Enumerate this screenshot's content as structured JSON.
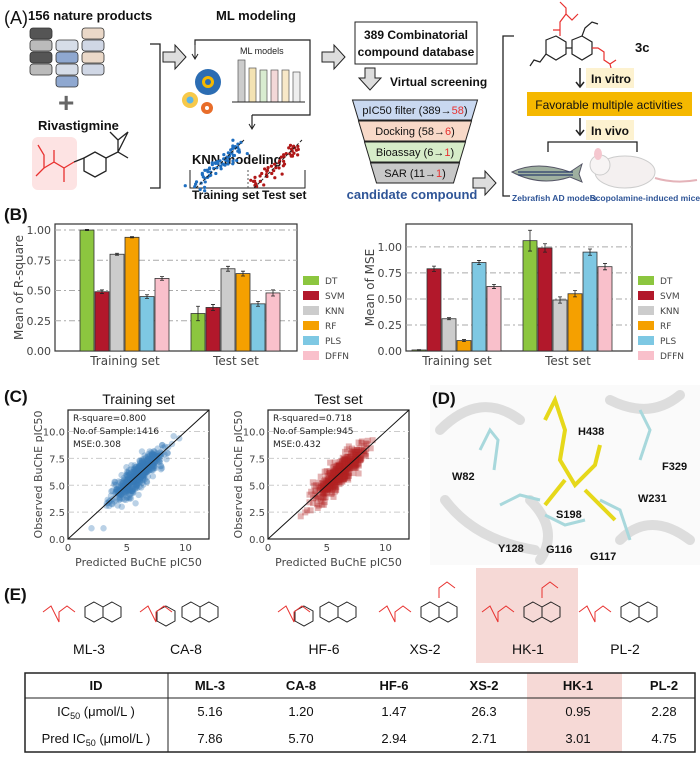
{
  "panelA": {
    "label": "(A)",
    "natural_products": "156 nature products",
    "plus": "+",
    "rivastigmine": "Rivastigmine",
    "ml_modeling": "ML modeling",
    "ml_models": "ML models",
    "knn_modeling": "KNN modeling",
    "training_set": "Training set",
    "test_set": "Test set",
    "database_line1": "389 Combinatorial",
    "database_line2": "compound database",
    "virtual_screening": "Virtual screening",
    "funnel": [
      {
        "text": "pIC50 filter (389→",
        "highlight": "58",
        "end": ")",
        "color": "#c9d8f0"
      },
      {
        "text": "Docking (58→",
        "highlight": "6",
        "end": ")",
        "color": "#f8d9c8"
      },
      {
        "text": "Bioassay (6→",
        "highlight": "1",
        "end": ")",
        "color": "#d6ecc8"
      },
      {
        "text": "SAR (11→",
        "highlight": "1",
        "end": ")",
        "color": "#c8c8c8"
      }
    ],
    "candidate": "candidate compound",
    "compound_id": "3c",
    "in_vitro": "In vitro",
    "favorable": "Favorable multiple activities",
    "in_vivo": "In vivo",
    "zebrafish": "Zebrafish AD models",
    "mice": "Scopolamine-induced mice",
    "highlight_color": "#f5b800",
    "accent_red": "#e8312f",
    "accent_blue": "#2f5597"
  },
  "panelB": {
    "label": "(B)"
  },
  "panelC": {
    "label": "(C)"
  },
  "panelD": {
    "label": "(D)",
    "residues": [
      "H438",
      "F329",
      "W82",
      "W231",
      "S198",
      "Y128",
      "G116",
      "G117"
    ]
  },
  "chart_data": [
    {
      "type": "bar",
      "ylabel": "Mean of R-square",
      "categories": [
        "Training set",
        "Test set"
      ],
      "ylim": [
        0,
        1.05
      ],
      "yticks": [
        "0.00",
        "0.25",
        "0.50",
        "0.75",
        "1.00"
      ],
      "grid": true,
      "legend_position": "right",
      "series": [
        {
          "name": "DT",
          "color": "#8cc63f",
          "values": [
            1.0,
            0.31
          ],
          "errors": [
            0.005,
            0.06
          ]
        },
        {
          "name": "SVM",
          "color": "#b2182b",
          "values": [
            0.49,
            0.36
          ],
          "errors": [
            0.015,
            0.025
          ]
        },
        {
          "name": "KNN",
          "color": "#cccccc",
          "values": [
            0.8,
            0.68
          ],
          "errors": [
            0.008,
            0.02
          ]
        },
        {
          "name": "RF",
          "color": "#f5a000",
          "values": [
            0.94,
            0.64
          ],
          "errors": [
            0.005,
            0.02
          ]
        },
        {
          "name": "PLS",
          "color": "#7ec8e3",
          "values": [
            0.45,
            0.39
          ],
          "errors": [
            0.015,
            0.02
          ]
        },
        {
          "name": "DFFN",
          "color": "#f9c0cb",
          "values": [
            0.6,
            0.48
          ],
          "errors": [
            0.015,
            0.025
          ]
        }
      ]
    },
    {
      "type": "bar",
      "ylabel": "Mean of MSE",
      "categories": [
        "Training set",
        "Test set"
      ],
      "ylim": [
        0,
        1.22
      ],
      "yticks": [
        "0.00",
        "0.25",
        "0.50",
        "0.75",
        "1.00"
      ],
      "grid": true,
      "legend_position": "right",
      "series": [
        {
          "name": "DT",
          "color": "#8cc63f",
          "values": [
            0.01,
            1.06
          ],
          "errors": [
            0.003,
            0.1
          ]
        },
        {
          "name": "SVM",
          "color": "#b2182b",
          "values": [
            0.79,
            0.99
          ],
          "errors": [
            0.025,
            0.04
          ]
        },
        {
          "name": "KNN",
          "color": "#cccccc",
          "values": [
            0.31,
            0.49
          ],
          "errors": [
            0.01,
            0.03
          ]
        },
        {
          "name": "RF",
          "color": "#f5a000",
          "values": [
            0.1,
            0.55
          ],
          "errors": [
            0.01,
            0.03
          ]
        },
        {
          "name": "PLS",
          "color": "#7ec8e3",
          "values": [
            0.85,
            0.95
          ],
          "errors": [
            0.02,
            0.03
          ]
        },
        {
          "name": "DFFN",
          "color": "#f9c0cb",
          "values": [
            0.62,
            0.81
          ],
          "errors": [
            0.02,
            0.03
          ]
        }
      ]
    },
    {
      "type": "scatter",
      "title": "Training set",
      "xlabel": "Predicted BuChE pIC50",
      "ylabel": "Observed BuChE pIC50",
      "xlim": [
        0,
        12
      ],
      "ylim": [
        0,
        12
      ],
      "xticks": [
        "0",
        "5",
        "10"
      ],
      "yticks": [
        "0.0",
        "2.5",
        "5.0",
        "7.5",
        "10.0"
      ],
      "annotations": [
        "R-square=0.800",
        "No.of Sample:1416",
        "MSE:0.308"
      ],
      "r_square": 0.8,
      "n_samples": 1416,
      "mse": 0.308,
      "color": "#3a7ab8",
      "marker": "circle",
      "diagonal": true
    },
    {
      "type": "scatter",
      "title": "Test set",
      "xlabel": "Predicted BuChE pIC50",
      "ylabel": "Observed BuChE pIC50",
      "xlim": [
        0,
        12
      ],
      "ylim": [
        0,
        12
      ],
      "xticks": [
        "0",
        "5",
        "10"
      ],
      "yticks": [
        "0.0",
        "2.5",
        "5.0",
        "7.5",
        "10.0"
      ],
      "annotations": [
        "R-squared=0.718",
        "No.of Sample:945",
        "MSE:0.432"
      ],
      "r_square": 0.718,
      "n_samples": 945,
      "mse": 0.432,
      "color": "#b22222",
      "marker": "square",
      "diagonal": true
    }
  ],
  "panelE": {
    "label": "(E)",
    "compounds": [
      "ML-3",
      "CA-8",
      "HF-6",
      "XS-2",
      "HK-1",
      "PL-2"
    ],
    "highlight_compound": "HK-1",
    "highlight_color": "#f6d9d6",
    "table": {
      "headers": [
        "ID",
        "ML-3",
        "CA-8",
        "HF-6",
        "XS-2",
        "HK-1",
        "PL-2"
      ],
      "rows": [
        {
          "label": "IC",
          "sub": "50",
          "unit": " (μmol/L )",
          "values": [
            "5.16",
            "1.20",
            "1.47",
            "26.3",
            "0.95",
            "2.28"
          ]
        },
        {
          "label": "Pred IC",
          "sub": "50",
          "unit": " (μmol/L )",
          "values": [
            "7.86",
            "5.70",
            "2.94",
            "2.71",
            "3.01",
            "4.75"
          ]
        }
      ]
    }
  }
}
